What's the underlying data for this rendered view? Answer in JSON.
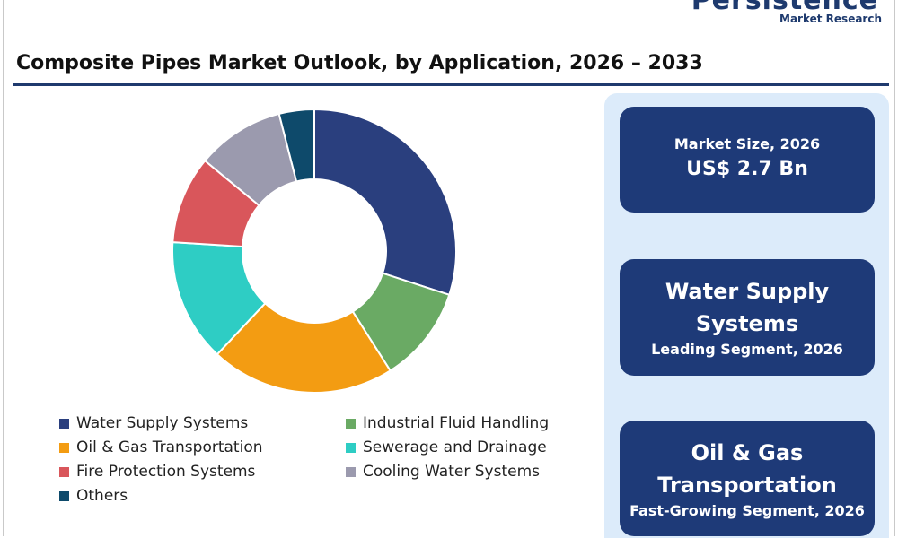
{
  "brand": {
    "name": "Persistence",
    "sub": "Market Research"
  },
  "title": "Composite Pipes Market Outlook, by Application, 2026 – 2033",
  "chart_data": {
    "type": "pie",
    "donut": true,
    "categories": [
      "Water Supply Systems",
      "Industrial Fluid Handling",
      "Oil & Gas Transportation",
      "Sewerage and Drainage",
      "Fire Protection Systems",
      "Cooling Water Systems",
      "Others"
    ],
    "values": [
      30,
      11,
      21,
      14,
      10,
      10,
      4
    ],
    "colors": [
      "#2a3f7e",
      "#6aaa64",
      "#f39c12",
      "#2ecdc4",
      "#d9565b",
      "#9b9aae",
      "#0e4a6b"
    ],
    "legend_placement": "bottom"
  },
  "cards": [
    {
      "label": "Market Size, 2026",
      "value": "US$ 2.7 Bn"
    },
    {
      "value_line1": "Water Supply",
      "value_line2": "Systems",
      "label": "Leading Segment, 2026"
    },
    {
      "value_line1": "Oil & Gas",
      "value_line2": "Transportation",
      "label": "Fast-Growing Segment, 2026"
    }
  ]
}
